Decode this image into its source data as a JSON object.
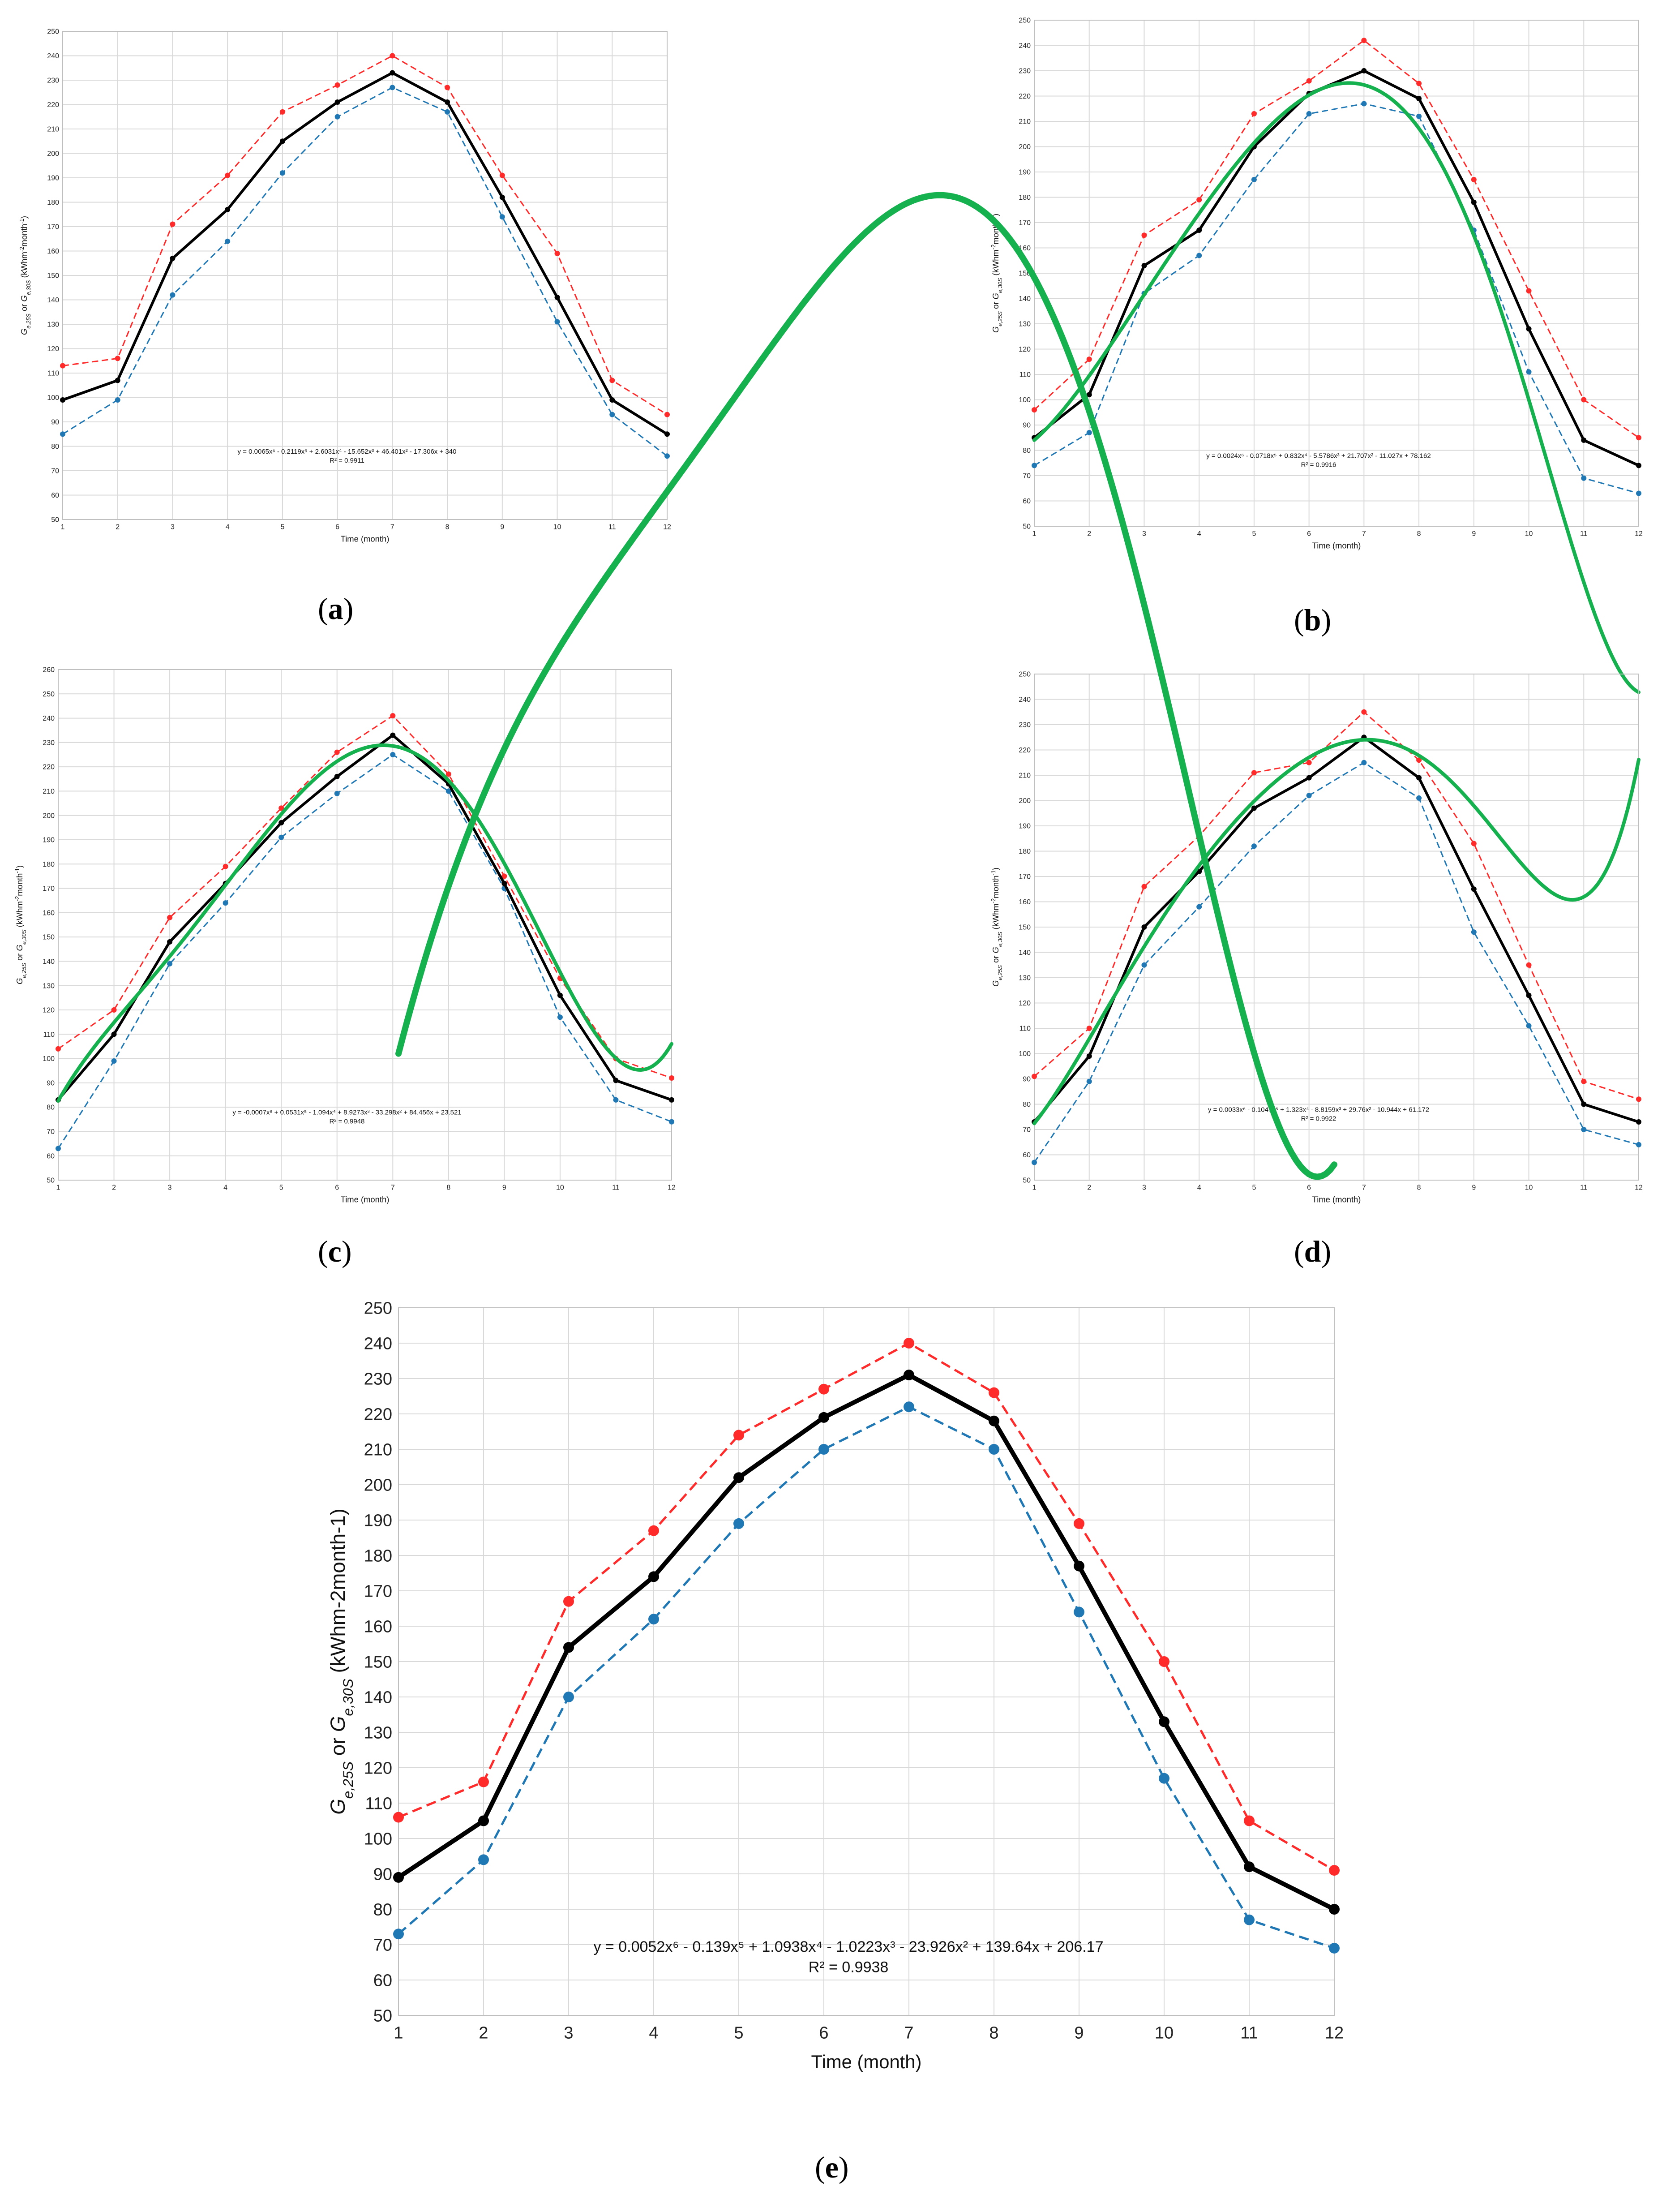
{
  "colors": {
    "series_avg": "#000000",
    "series_25s": "#ff2a2a",
    "series_30s": "#1f77b4",
    "poly_fit": "#16b14f",
    "grid": "#d9d9d9"
  },
  "chart_data": [
    {
      "panel": "a",
      "type": "line",
      "xlabel": "Time (month)",
      "ylabel": "Ge,25S or Ge,30S (kWhm-2month-1)",
      "ylabel_parts": {
        "g1": "G",
        "s1": "e,25S",
        "mid": " or ",
        "g2": "G",
        "s2": "e,30S",
        "unit_open": " (kWhm",
        "exp1": "-2",
        "unit_mid": "month",
        "exp2": "-1",
        "unit_close": ")"
      },
      "ylim": [
        50,
        250
      ],
      "ytick_step": 10,
      "x": [
        1,
        2,
        3,
        4,
        5,
        6,
        7,
        8,
        9,
        10,
        11,
        12
      ],
      "series": [
        {
          "name": "red_dashed",
          "values": [
            113,
            116,
            171,
            191,
            217,
            228,
            240,
            227,
            191,
            159,
            107,
            93
          ]
        },
        {
          "name": "blue_dashed",
          "values": [
            85,
            99,
            142,
            164,
            192,
            215,
            227,
            217,
            174,
            131,
            93,
            76
          ]
        },
        {
          "name": "black_solid",
          "values": [
            99,
            107,
            157,
            177,
            205,
            221,
            233,
            221,
            182,
            141,
            99,
            85
          ]
        }
      ],
      "poly_coeffs": [
        0.0065,
        -0.2119,
        2.6031,
        -15.652,
        46.401,
        -17.306,
        340
      ],
      "equation": "y = 0.0065x⁶ - 0.2119x⁵ + 2.6031x⁴ - 15.652x³ + 46.401x² - 17.306x + 340",
      "r2": "R² = 0.9911"
    },
    {
      "panel": "b",
      "type": "line",
      "xlabel": "Time (month)",
      "ylabel": "Ge,25S or Ge,30S (kWhm-2month-1)",
      "ylabel_parts": {
        "g1": "G",
        "s1": "e,25S",
        "mid": " or ",
        "g2": "G",
        "s2": "e,30S",
        "unit_open": " (kWhm",
        "exp1": "-2",
        "unit_mid": "month",
        "exp2": "-1",
        "unit_close": ")"
      },
      "ylim": [
        50,
        250
      ],
      "ytick_step": 10,
      "x": [
        1,
        2,
        3,
        4,
        5,
        6,
        7,
        8,
        9,
        10,
        11,
        12
      ],
      "series": [
        {
          "name": "red_dashed",
          "values": [
            96,
            116,
            165,
            179,
            213,
            226,
            242,
            225,
            187,
            143,
            100,
            85
          ]
        },
        {
          "name": "blue_dashed",
          "values": [
            74,
            87,
            142,
            157,
            187,
            213,
            217,
            212,
            167,
            111,
            69,
            63
          ]
        },
        {
          "name": "black_solid",
          "values": [
            85,
            102,
            153,
            167,
            200,
            221,
            230,
            219,
            178,
            128,
            84,
            74
          ]
        }
      ],
      "poly_coeffs": [
        0.0024,
        -0.0718,
        0.832,
        -5.5786,
        21.707,
        -11.027,
        78.162
      ],
      "equation": "y = 0.0024x⁶ - 0.0718x⁵ + 0.832x⁴ - 5.5786x³ + 21.707x² - 11.027x + 78.162",
      "r2": "R² = 0.9916"
    },
    {
      "panel": "c",
      "type": "line",
      "xlabel": "Time (month)",
      "ylabel": "Ge,25S or Ge,30S (kWhm-2month-1)",
      "ylabel_parts": {
        "g1": "G",
        "s1": "e,25S",
        "mid": " or ",
        "g2": "G",
        "s2": "e,30S",
        "unit_open": " (kWhm",
        "exp1": "-2",
        "unit_mid": "month",
        "exp2": "-1",
        "unit_close": ")"
      },
      "ylim": [
        50,
        260
      ],
      "ytick_step": 10,
      "x": [
        1,
        2,
        3,
        4,
        5,
        6,
        7,
        8,
        9,
        10,
        11,
        12
      ],
      "series": [
        {
          "name": "red_dashed",
          "values": [
            104,
            120,
            158,
            179,
            203,
            226,
            241,
            217,
            175,
            133,
            100,
            92
          ]
        },
        {
          "name": "blue_dashed",
          "values": [
            63,
            99,
            139,
            164,
            191,
            209,
            225,
            210,
            170,
            117,
            83,
            74
          ]
        },
        {
          "name": "black_solid",
          "values": [
            83,
            110,
            148,
            172,
            197,
            216,
            233,
            213,
            172,
            126,
            91,
            83
          ]
        }
      ],
      "poly_coeffs": [
        -0.0007,
        0.0531,
        -1.094,
        8.9273,
        -33.298,
        84.456,
        23.521
      ],
      "equation": "y = -0.0007x⁶ + 0.0531x⁵ - 1.094x⁴ + 8.9273x³ - 33.298x² + 84.456x + 23.521",
      "r2": "R² = 0.9948"
    },
    {
      "panel": "d",
      "type": "line",
      "xlabel": "Time (month)",
      "ylabel": "Ge,25S or Ge,30S (kWhm-2month-1)",
      "ylabel_parts": {
        "g1": "G",
        "s1": "e,25S",
        "mid": " or ",
        "g2": "G",
        "s2": "e,30S",
        "unit_open": " (kWhm",
        "exp1": "-2",
        "unit_mid": "month",
        "exp2": "-1",
        "unit_close": ")"
      },
      "ylim": [
        50,
        250
      ],
      "ytick_step": 10,
      "x": [
        1,
        2,
        3,
        4,
        5,
        6,
        7,
        8,
        9,
        10,
        11,
        12
      ],
      "series": [
        {
          "name": "red_dashed",
          "values": [
            91,
            110,
            166,
            186,
            211,
            215,
            235,
            216,
            183,
            135,
            89,
            82
          ]
        },
        {
          "name": "blue_dashed",
          "values": [
            57,
            89,
            135,
            158,
            182,
            202,
            215,
            201,
            148,
            111,
            70,
            64
          ]
        },
        {
          "name": "black_solid",
          "values": [
            73,
            99,
            150,
            172,
            197,
            209,
            225,
            209,
            165,
            123,
            80,
            73
          ]
        }
      ],
      "poly_coeffs": [
        0.0033,
        -0.1047,
        1.323,
        -8.8159,
        29.76,
        -10.944,
        61.172
      ],
      "equation": "y = 0.0033x⁶ - 0.1047x⁵ + 1.323x⁴ - 8.8159x³ + 29.76x² - 10.944x + 61.172",
      "r2": "R² = 0.9922"
    },
    {
      "panel": "e",
      "type": "line",
      "xlabel": "Time (month)",
      "ylabel": "Ge,25S or Ge,30S (kWhm-2month-1)",
      "ylabel_parts": {
        "g1": "G",
        "s1": "e,25S",
        "mid": " or ",
        "g2": "G",
        "s2": "e,30S",
        "unit_open": " (kWhm-2month-1)",
        "exp1": "",
        "unit_mid": "",
        "exp2": "",
        "unit_close": ""
      },
      "ylim": [
        50,
        250
      ],
      "ytick_step": 10,
      "x": [
        1,
        2,
        3,
        4,
        5,
        6,
        7,
        8,
        9,
        10,
        11,
        12
      ],
      "series": [
        {
          "name": "red_dashed",
          "values": [
            106,
            116,
            167,
            187,
            214,
            227,
            240,
            226,
            189,
            150,
            105,
            91
          ]
        },
        {
          "name": "blue_dashed",
          "values": [
            73,
            94,
            140,
            162,
            189,
            210,
            222,
            210,
            164,
            117,
            77,
            69
          ]
        },
        {
          "name": "black_solid",
          "values": [
            89,
            105,
            154,
            174,
            202,
            219,
            231,
            218,
            177,
            133,
            92,
            80
          ]
        }
      ],
      "poly_coeffs": [
        0.0052,
        -0.139,
        1.0938,
        -1.0223,
        -23.926,
        139.64,
        206.17
      ],
      "equation": "y = 0.0052x⁶ - 0.139x⁵ + 1.0938x⁴ - 1.0223x³ - 23.926x² + 139.64x + 206.17",
      "r2": "R² = 0.9938"
    }
  ],
  "panel_labels": {
    "a": "a",
    "b": "b",
    "c": "c",
    "d": "d",
    "e": "e"
  }
}
